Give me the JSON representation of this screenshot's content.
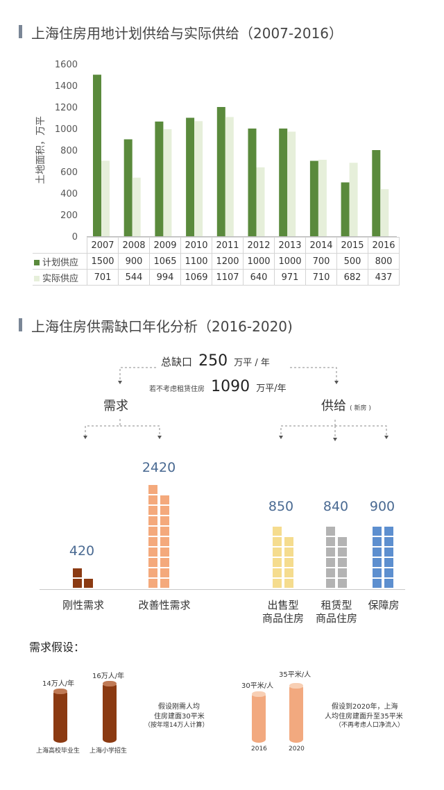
{
  "section1": {
    "title": "上海住房用地计划供给与实际供给（2007-2016）"
  },
  "chart_data": {
    "type": "bar",
    "title": "上海住房用地计划供给与实际供给（2007-2016）",
    "ylabel": "土地面积，万平",
    "xlabel": "",
    "ylim": [
      0,
      1600
    ],
    "yticks": [
      "0",
      "200",
      "400",
      "600",
      "800",
      "1000",
      "1200",
      "1400",
      "1600"
    ],
    "categories": [
      "2007",
      "2008",
      "2009",
      "2010",
      "2011",
      "2012",
      "2013",
      "2014",
      "2015",
      "2016"
    ],
    "series": [
      {
        "name": "计划供应",
        "values": [
          1500,
          900,
          1065,
          1100,
          1200,
          1000,
          1000,
          700,
          500,
          800
        ],
        "color": "#5a8a3c"
      },
      {
        "name": "实际供应",
        "values": [
          701,
          544,
          994,
          1069,
          1107,
          640,
          971,
          710,
          682,
          437
        ],
        "color": "#e6efda"
      }
    ],
    "legend": "table-below",
    "grid": false
  },
  "section2": {
    "title": "上海住房供需缺口年化分析（2016-2020)",
    "total_label": "总缺口",
    "total_value": "250",
    "total_unit": "万平 / 年",
    "alt_label": "若不考虑租赁住房",
    "alt_value": "1090",
    "alt_unit": "万平/年",
    "demand_label": "需求",
    "supply_label": "供给",
    "supply_note": "( 新房 )",
    "items": [
      {
        "value": "420",
        "label": "刚性需求",
        "color": "#8b3a12"
      },
      {
        "value": "2420",
        "label": "改善性需求",
        "color": "#f4a97c"
      },
      {
        "value": "850",
        "label": "出售型\n商品住房",
        "color": "#f5dc8e"
      },
      {
        "value": "840",
        "label": "租赁型\n商品住房",
        "color": "#b3b3b3"
      },
      {
        "value": "900",
        "label": "保障房",
        "color": "#5d8fcf"
      }
    ]
  },
  "assumptions": {
    "title": "需求假设：",
    "left": {
      "bars": [
        {
          "value_label": "14万人/年",
          "name": "上海高校毕业生"
        },
        {
          "value_label": "16万人/年",
          "name": "上海小学招生"
        }
      ],
      "note": [
        "假设刚需人均",
        "住房建面30平米",
        "（按年增14万人计算）"
      ]
    },
    "right": {
      "bars": [
        {
          "value_label": "30平米/人",
          "name": "2016"
        },
        {
          "value_label": "35平米/人",
          "name": "2020"
        }
      ],
      "note": [
        "假设到2020年，上海",
        "人均住房建面升至35平米",
        "（不再考虑人口净流入）"
      ]
    }
  }
}
